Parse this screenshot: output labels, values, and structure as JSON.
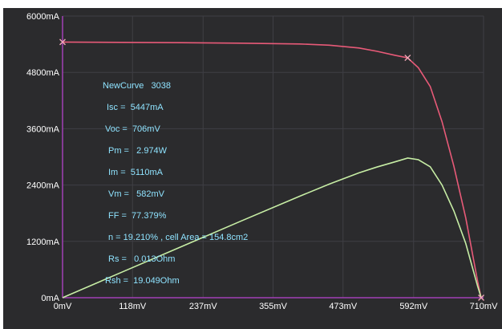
{
  "chart_data": {
    "type": "line",
    "colors": {
      "background": "#2b2b2d",
      "axis": "#a23fb6",
      "grid": "#3f3f45",
      "iv_curve": "#e85a78",
      "power_curve": "#c7eea5",
      "marker": "#f0a8b8",
      "label_text": "#ffffff",
      "info_text": "#8fe3ff"
    },
    "grid": true,
    "xlim": [
      0,
      710
    ],
    "ylim": [
      0,
      6000
    ],
    "x_ticks": [
      "0mV",
      "118mV",
      "237mV",
      "355mV",
      "473mV",
      "592mV",
      "710mV"
    ],
    "x_tick_values": [
      0,
      118,
      237,
      355,
      473,
      592,
      710
    ],
    "y_ticks": [
      "0mA",
      "1200mA",
      "2400mA",
      "3600mA",
      "4800mA",
      "6000mA"
    ],
    "y_tick_values": [
      0,
      1200,
      2400,
      3600,
      4800,
      6000
    ],
    "series": [
      {
        "key": "iv",
        "x": [
          0,
          100,
          200,
          300,
          400,
          450,
          500,
          530,
          560,
          582,
          600,
          620,
          640,
          660,
          680,
          700,
          706
        ],
        "y": [
          5447,
          5440,
          5432,
          5422,
          5405,
          5380,
          5320,
          5250,
          5165,
          5110,
          4900,
          4500,
          3750,
          2800,
          1700,
          350,
          0
        ]
      },
      {
        "key": "power",
        "x": [
          0,
          100,
          200,
          300,
          400,
          450,
          500,
          530,
          560,
          582,
          600,
          620,
          640,
          660,
          680,
          700,
          706
        ],
        "y": [
          0,
          544,
          1086,
          1627,
          2162,
          2421,
          2660,
          2783,
          2892,
          2974,
          2940,
          2790,
          2400,
          1848,
          1156,
          245,
          0
        ]
      }
    ],
    "markers": [
      {
        "x": 0,
        "y": 5447
      },
      {
        "x": 582,
        "y": 5110
      },
      {
        "x": 706,
        "y": 0
      }
    ],
    "info": {
      "curve_name": "NewCurve   3038",
      "isc": "Isc =  5447mA",
      "voc": "Voc =  706mV",
      "pm": "Pm =   2.974W",
      "im": "Im =  5110mA",
      "vm": "Vm =   582mV",
      "ff": "FF =  77.379%",
      "eff": "n = 19.210% , cell Area = 154.8cm2",
      "rs": "Rs =   0.013Ohm",
      "rsh": "Rsh =  19.049Ohm"
    }
  }
}
